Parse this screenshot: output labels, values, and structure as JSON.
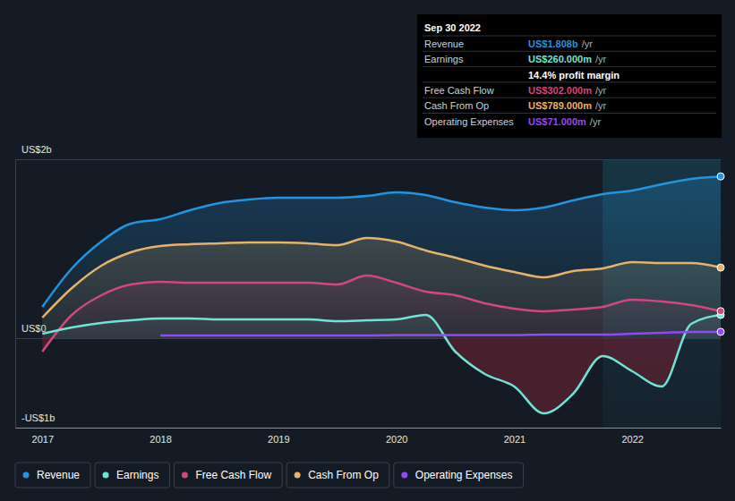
{
  "chart_data": {
    "type": "line",
    "x": [
      2017,
      2017.25,
      2017.5,
      2017.75,
      2018,
      2018.25,
      2018.5,
      2018.75,
      2019,
      2019.25,
      2019.5,
      2019.75,
      2020,
      2020.25,
      2020.5,
      2020.75,
      2021,
      2021.25,
      2021.5,
      2021.75,
      2022,
      2022.25,
      2022.5,
      2022.75
    ],
    "xlim": [
      2016.77,
      2022.75
    ],
    "xticks": [
      2017,
      2018,
      2019,
      2020,
      2021,
      2022
    ],
    "ylim": [
      -1,
      2
    ],
    "yticks": [
      {
        "value": 2,
        "label": "US$2b"
      },
      {
        "value": 0,
        "label": "US$0"
      },
      {
        "value": -1,
        "label": "-US$1b"
      }
    ],
    "grid": true,
    "legend": "bottom",
    "shaded_x": [
      2021.75,
      2022.75
    ],
    "series": [
      {
        "name": "Revenue",
        "type": "area",
        "color": "#2394df",
        "values": [
          0.35,
          0.78,
          1.08,
          1.28,
          1.33,
          1.43,
          1.51,
          1.55,
          1.57,
          1.57,
          1.57,
          1.59,
          1.63,
          1.6,
          1.52,
          1.46,
          1.43,
          1.46,
          1.54,
          1.61,
          1.65,
          1.72,
          1.78,
          1.808
        ]
      },
      {
        "name": "Earnings",
        "type": "area",
        "color": "#6fe3d6",
        "values": [
          0.05,
          0.12,
          0.17,
          0.2,
          0.22,
          0.22,
          0.21,
          0.21,
          0.21,
          0.21,
          0.19,
          0.2,
          0.21,
          0.26,
          -0.15,
          -0.4,
          -0.54,
          -0.84,
          -0.62,
          -0.2,
          -0.37,
          -0.54,
          0.16,
          0.26
        ]
      },
      {
        "name": "Free Cash Flow",
        "type": "area",
        "color": "#d1477e",
        "values": [
          -0.15,
          0.26,
          0.48,
          0.6,
          0.63,
          0.62,
          0.62,
          0.62,
          0.62,
          0.62,
          0.6,
          0.7,
          0.62,
          0.52,
          0.48,
          0.39,
          0.33,
          0.3,
          0.32,
          0.35,
          0.43,
          0.41,
          0.37,
          0.302
        ]
      },
      {
        "name": "Cash From Op",
        "type": "area",
        "color": "#e6b26a",
        "values": [
          0.23,
          0.56,
          0.81,
          0.96,
          1.03,
          1.05,
          1.06,
          1.07,
          1.07,
          1.06,
          1.04,
          1.12,
          1.08,
          0.98,
          0.9,
          0.81,
          0.74,
          0.68,
          0.75,
          0.78,
          0.85,
          0.84,
          0.84,
          0.789
        ]
      },
      {
        "name": "Operating Expenses",
        "type": "line",
        "color": "#9149f5",
        "values": [
          null,
          null,
          null,
          null,
          0.03,
          0.03,
          0.03,
          0.03,
          0.03,
          0.03,
          0.03,
          0.03,
          0.035,
          0.035,
          0.035,
          0.035,
          0.035,
          0.04,
          0.04,
          0.04,
          0.05,
          0.06,
          0.07,
          0.071
        ]
      }
    ],
    "tooltip": {
      "title": "Sep 30 2022",
      "rows": [
        {
          "label": "Revenue",
          "value": "US$1.808b",
          "unit": "/yr"
        },
        {
          "label": "Earnings",
          "value": "US$260.000m",
          "unit": "/yr"
        },
        {
          "note": "14.4% profit margin"
        },
        {
          "label": "Free Cash Flow",
          "value": "US$302.000m",
          "unit": "/yr"
        },
        {
          "label": "Cash From Op",
          "value": "US$789.000m",
          "unit": "/yr"
        },
        {
          "label": "Operating Expenses",
          "value": "US$71.000m",
          "unit": "/yr"
        }
      ]
    }
  }
}
